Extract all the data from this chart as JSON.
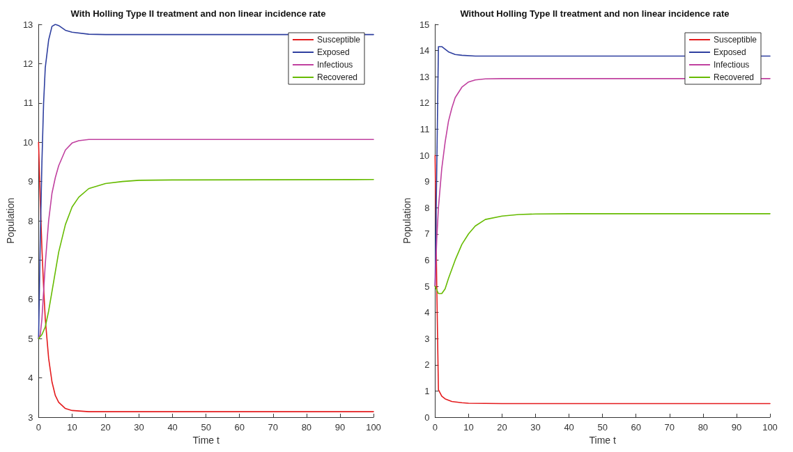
{
  "chart_data": [
    {
      "type": "line",
      "title": "With Holling Type II treatment and non linear incidence rate",
      "xlabel": "Time t",
      "ylabel": "Population",
      "xlim": [
        0,
        100
      ],
      "xticks": [
        0,
        10,
        20,
        30,
        40,
        50,
        60,
        70,
        80,
        90,
        100
      ],
      "ylim": [
        3,
        13
      ],
      "yticks": [
        3,
        4,
        5,
        6,
        7,
        8,
        9,
        10,
        11,
        12,
        13
      ],
      "grid": false,
      "legend": "top right",
      "marker": "none",
      "line_style": "solid",
      "series": [
        {
          "name": "Susceptible",
          "color": "#e41a1c",
          "x": [
            0,
            0.5,
            1,
            1.5,
            2,
            3,
            4,
            5,
            6,
            8,
            10,
            15,
            20,
            100
          ],
          "values": [
            10,
            8.5,
            7.3,
            6.3,
            5.5,
            4.5,
            3.9,
            3.55,
            3.38,
            3.22,
            3.17,
            3.14,
            3.14,
            3.14
          ]
        },
        {
          "name": "Exposed",
          "color": "#2e3f9f",
          "x": [
            0,
            0.5,
            1,
            1.5,
            2,
            3,
            4,
            5,
            6,
            8,
            10,
            15,
            20,
            100
          ],
          "values": [
            5,
            7.5,
            9.5,
            11,
            11.9,
            12.6,
            12.95,
            13,
            12.97,
            12.85,
            12.8,
            12.75,
            12.74,
            12.74
          ]
        },
        {
          "name": "Infectious",
          "color": "#c0409f",
          "x": [
            0,
            0.5,
            1,
            1.5,
            2,
            3,
            4,
            5,
            6,
            8,
            10,
            12,
            15,
            20,
            100
          ],
          "values": [
            5,
            5.1,
            5.5,
            6.2,
            6.9,
            8,
            8.7,
            9.1,
            9.4,
            9.8,
            9.98,
            10.04,
            10.07,
            10.07,
            10.07
          ]
        },
        {
          "name": "Recovered",
          "color": "#66bb00",
          "x": [
            0,
            1,
            2,
            3,
            4,
            5,
            6,
            8,
            10,
            12,
            15,
            20,
            25,
            30,
            40,
            100
          ],
          "values": [
            5,
            5.1,
            5.3,
            5.7,
            6.2,
            6.7,
            7.2,
            7.9,
            8.35,
            8.6,
            8.82,
            8.95,
            9,
            9.03,
            9.04,
            9.05
          ]
        }
      ]
    },
    {
      "type": "line",
      "title": "Without Holling Type II treatment and non linear incidence rate",
      "xlabel": "Time t",
      "ylabel": "Population",
      "xlim": [
        0,
        100
      ],
      "xticks": [
        0,
        10,
        20,
        30,
        40,
        50,
        60,
        70,
        80,
        90,
        100
      ],
      "ylim": [
        0,
        15
      ],
      "yticks": [
        0,
        1,
        2,
        3,
        4,
        5,
        6,
        7,
        8,
        9,
        10,
        11,
        12,
        13,
        14,
        15
      ],
      "grid": false,
      "legend": "top right",
      "marker": "none",
      "line_style": "solid",
      "series": [
        {
          "name": "Susceptible",
          "color": "#e41a1c",
          "x": [
            0,
            0.5,
            1,
            2,
            3,
            5,
            8,
            10,
            20,
            100
          ],
          "values": [
            10,
            5,
            1.05,
            0.8,
            0.7,
            0.6,
            0.55,
            0.53,
            0.52,
            0.52
          ]
        },
        {
          "name": "Exposed",
          "color": "#2e3f9f",
          "x": [
            0,
            0.5,
            1,
            2,
            3,
            4,
            6,
            8,
            12,
            100
          ],
          "values": [
            5,
            9.5,
            14.15,
            14.15,
            14.05,
            13.95,
            13.85,
            13.82,
            13.79,
            13.79
          ]
        },
        {
          "name": "Infectious",
          "color": "#c0409f",
          "x": [
            0,
            0.5,
            1,
            2,
            3,
            4,
            5,
            6,
            8,
            10,
            12,
            15,
            20,
            100
          ],
          "values": [
            5,
            6.8,
            8,
            9.5,
            10.5,
            11.3,
            11.8,
            12.2,
            12.6,
            12.8,
            12.88,
            12.92,
            12.93,
            12.93
          ]
        },
        {
          "name": "Recovered",
          "color": "#66bb00",
          "x": [
            0,
            1,
            2,
            3,
            4,
            6,
            8,
            10,
            12,
            15,
            20,
            25,
            30,
            40,
            100
          ],
          "values": [
            5,
            4.72,
            4.72,
            4.9,
            5.3,
            6,
            6.6,
            7,
            7.3,
            7.55,
            7.68,
            7.74,
            7.76,
            7.77,
            7.77
          ]
        }
      ]
    }
  ]
}
